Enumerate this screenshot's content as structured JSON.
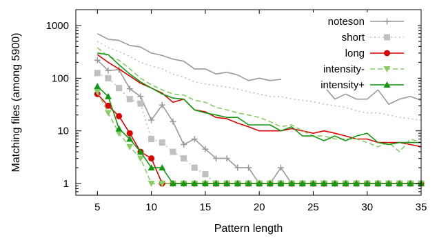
{
  "chart_data": {
    "type": "line",
    "xlabel": "Pattern length",
    "ylabel": "Matching files (among 5900)",
    "xlim": [
      3,
      35
    ],
    "ylim": [
      0.6,
      2000
    ],
    "yscale": "log",
    "xticks": [
      5,
      10,
      15,
      20,
      25,
      30,
      35
    ],
    "yticks": [
      1,
      10,
      100,
      1000
    ],
    "ytick_labels": [
      "1",
      "10",
      "100",
      "1000"
    ],
    "grid": false,
    "legend_position": "top-right",
    "groups": [
      {
        "name": "noteson",
        "color": "#999999",
        "style": "solid",
        "marker": "plus",
        "curves": [
          {
            "x": [
              5,
              6,
              7,
              8,
              9,
              10,
              11,
              12,
              13,
              14,
              15,
              16,
              17,
              18,
              19,
              20,
              21,
              22,
              23,
              24,
              25,
              26,
              27,
              28,
              29,
              30,
              31,
              32,
              33,
              34,
              35
            ],
            "y": [
              700,
              550,
              520,
              420,
              390,
              300,
              270,
              230,
              210,
              150,
              150,
              120,
              130,
              115,
              90,
              100,
              90,
              95,
              70,
              80,
              80,
              70,
              40,
              50,
              40,
              40,
              60,
              32,
              40,
              45,
              38
            ],
            "markers": false
          },
          {
            "x": [
              5,
              6,
              7,
              8,
              9,
              10,
              11,
              12,
              13,
              14,
              15,
              16,
              17,
              18,
              19,
              20,
              21,
              22,
              23,
              24,
              25,
              26,
              27,
              28,
              29,
              30,
              31,
              32,
              33,
              34,
              35
            ],
            "y": [
              220,
              140,
              145,
              63,
              45,
              16,
              31,
              15,
              5.5,
              7,
              4.5,
              3,
              3,
              2,
              2,
              1,
              1,
              2,
              1,
              1,
              1,
              1,
              1,
              1,
              1,
              1,
              1,
              1,
              1,
              1,
              1
            ],
            "markers": true
          }
        ]
      },
      {
        "name": "short",
        "color": "#c0c0c0",
        "style": "dotted",
        "marker": "square",
        "curves": [
          {
            "x": [
              5,
              6,
              7,
              8,
              9,
              10,
              11,
              12,
              13,
              14,
              15,
              16,
              17,
              18,
              19,
              20,
              21,
              22,
              23,
              24,
              25,
              26,
              27,
              28,
              29,
              30,
              31,
              32,
              33,
              34,
              35
            ],
            "y": [
              500,
              380,
              320,
              260,
              200,
              170,
              150,
              120,
              105,
              85,
              78,
              72,
              68,
              62,
              55,
              50,
              45,
              45,
              40,
              38,
              36,
              32,
              30,
              28,
              24,
              22,
              22,
              20,
              18,
              17,
              16
            ],
            "markers": false
          },
          {
            "x": [
              5,
              6,
              7,
              8,
              9,
              10,
              11,
              12,
              13,
              14,
              15,
              16,
              17,
              18,
              19,
              20,
              21,
              22,
              23,
              24,
              25,
              26,
              27,
              28,
              29,
              30,
              31,
              32,
              33,
              34,
              35
            ],
            "y": [
              125,
              100,
              65,
              40,
              33,
              7,
              6,
              4,
              3,
              2,
              1.5,
              1,
              1,
              1,
              1,
              1,
              1,
              1,
              1,
              1,
              1,
              1,
              1,
              1,
              1,
              1,
              1,
              1,
              1,
              1,
              1
            ],
            "markers": true
          }
        ]
      },
      {
        "name": "long",
        "color": "#dd0000",
        "style": "solid",
        "marker": "circle",
        "curves": [
          {
            "x": [
              5,
              6,
              7,
              8,
              9,
              10,
              11,
              12,
              13,
              14,
              15,
              16,
              17,
              18,
              19,
              20,
              21,
              22,
              23,
              24,
              25,
              26,
              27,
              28,
              29,
              30,
              31,
              32,
              33,
              34,
              35
            ],
            "y": [
              280,
              200,
              150,
              110,
              80,
              65,
              52,
              35,
              40,
              25,
              23,
              18,
              17,
              14,
              12,
              10,
              10,
              10,
              11,
              10,
              9,
              10,
              9,
              8,
              7,
              7,
              6,
              6,
              6,
              5.5,
              5
            ],
            "markers": false
          },
          {
            "x": [
              5,
              6,
              7,
              8,
              9,
              10,
              11,
              12,
              13,
              14,
              15,
              16,
              17,
              18,
              19,
              20,
              21,
              22,
              23,
              24,
              25,
              26,
              27,
              28,
              29,
              30,
              31,
              32,
              33,
              34,
              35
            ],
            "y": [
              50,
              30,
              19,
              9,
              4,
              3,
              1,
              1,
              1,
              1,
              1,
              1,
              1,
              1,
              1,
              1,
              1,
              1,
              1,
              1,
              1,
              1,
              1,
              1,
              1,
              1,
              1,
              1,
              1,
              1,
              1
            ],
            "markers": true
          }
        ]
      },
      {
        "name": "intensity-",
        "color": "#88cc66",
        "style": "dashed",
        "marker": "triangle-down",
        "curves": [
          {
            "x": [
              5,
              6,
              7,
              8,
              9,
              10,
              11,
              12,
              13,
              14,
              15,
              16,
              17,
              18,
              19,
              20,
              21,
              22,
              23,
              24,
              25,
              26,
              27,
              28,
              29,
              30,
              31,
              32,
              33,
              34,
              35
            ],
            "y": [
              380,
              260,
              220,
              150,
              100,
              75,
              60,
              50,
              48,
              38,
              35,
              28,
              25,
              22,
              20,
              18,
              15,
              12,
              13,
              10,
              8,
              8,
              7,
              7,
              7,
              6,
              5,
              6,
              4,
              7,
              6
            ],
            "markers": false
          },
          {
            "x": [
              5,
              6,
              7,
              8,
              9,
              10,
              11,
              12,
              13,
              14,
              15,
              16,
              17,
              18,
              19,
              20,
              21,
              22,
              23,
              24,
              25,
              26,
              27,
              28,
              29,
              30,
              31,
              32,
              33,
              34,
              35
            ],
            "y": [
              55,
              22,
              9,
              5,
              3,
              1,
              1,
              1,
              1,
              1,
              1,
              1,
              1,
              1,
              1,
              1,
              1,
              1,
              1,
              1,
              1,
              1,
              1,
              1,
              1,
              1,
              1,
              1,
              1,
              1,
              1
            ],
            "markers": true
          }
        ]
      },
      {
        "name": "intensity+",
        "color": "#119911",
        "style": "solid",
        "marker": "triangle-up",
        "curves": [
          {
            "x": [
              5,
              6,
              7,
              8,
              9,
              10,
              11,
              12,
              13,
              14,
              15,
              16,
              17,
              18,
              19,
              20,
              21,
              22,
              23,
              24,
              25,
              26,
              27,
              28,
              29,
              30,
              31,
              32,
              33,
              34,
              35
            ],
            "y": [
              300,
              280,
              180,
              120,
              85,
              65,
              50,
              42,
              40,
              25,
              22,
              20,
              18,
              18,
              13,
              13,
              13,
              10,
              12,
              8,
              8,
              6.5,
              8,
              6.5,
              8,
              9,
              6,
              5.5,
              6,
              6,
              6
            ],
            "markers": false
          },
          {
            "x": [
              5,
              6,
              7,
              8,
              9,
              10,
              11,
              12,
              13,
              14,
              15,
              16,
              17,
              18,
              19,
              20,
              21,
              22,
              23,
              24,
              25,
              26,
              27,
              28,
              29,
              30,
              31,
              32,
              33,
              34,
              35
            ],
            "y": [
              70,
              45,
              11,
              7,
              4,
              2,
              2,
              1,
              1,
              1,
              1,
              1,
              1,
              1,
              1,
              1,
              1,
              1,
              1,
              1,
              1,
              1,
              1,
              1,
              1,
              1,
              1,
              1,
              1,
              1,
              1
            ],
            "markers": true
          }
        ]
      }
    ]
  }
}
